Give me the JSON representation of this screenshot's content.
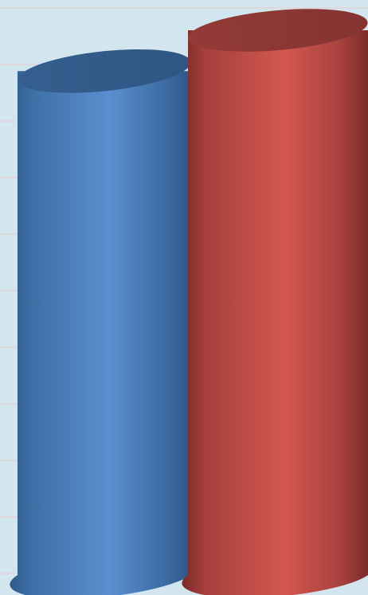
{
  "chart_data": {
    "type": "bar",
    "style": "3d-cylinder",
    "categories": [
      "",
      ""
    ],
    "series": [
      {
        "values": [
          92.5,
          null
        ],
        "color": "#4f81bd"
      },
      {
        "values": [
          null,
          100
        ],
        "color": "#c0504d"
      }
    ],
    "ylim": [
      0,
      100
    ],
    "grid": true,
    "colors": {
      "background": "#d3e6ef",
      "gridline": "#e8c9c9",
      "series_blue": "#4f81bd",
      "series_red": "#c0504d"
    }
  }
}
